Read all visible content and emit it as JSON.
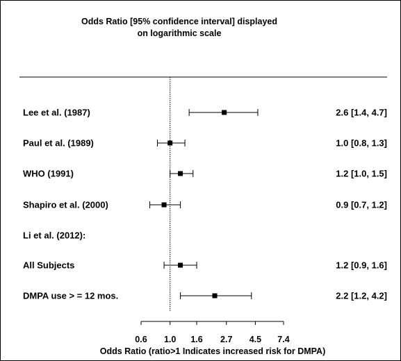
{
  "chart_data": {
    "type": "forest",
    "title_lines": [
      "Odds Ratio [95% confidence interval] displayed",
      "on logarithmic scale"
    ],
    "xlabel": "Odds Ratio (ratio>1 Indicates increased risk for DMPA)",
    "x_scale": "log",
    "xlim": [
      0.6,
      7.4
    ],
    "x_ticks": [
      {
        "value": 0.6,
        "label": "0.6"
      },
      {
        "value": 1.0,
        "label": "1.0"
      },
      {
        "value": 1.6,
        "label": "1.6"
      },
      {
        "value": 2.7,
        "label": "2.7"
      },
      {
        "value": 4.5,
        "label": "4.5"
      },
      {
        "value": 7.4,
        "label": "7.4"
      }
    ],
    "reference_line": 1.0,
    "rows": [
      {
        "label": "Lee et al. (1987)",
        "or": 2.6,
        "lo": 1.4,
        "hi": 4.7,
        "text": "2.6 [1.4, 4.7]"
      },
      {
        "label": "Paul et al. (1989)",
        "or": 1.0,
        "lo": 0.8,
        "hi": 1.3,
        "text": "1.0 [0.8, 1.3]"
      },
      {
        "label": "WHO (1991)",
        "or": 1.2,
        "lo": 1.0,
        "hi": 1.5,
        "text": "1.2 [1.0, 1.5]"
      },
      {
        "label": "Shapiro et al. (2000)",
        "or": 0.9,
        "lo": 0.7,
        "hi": 1.2,
        "text": "0.9 [0.7, 1.2]"
      },
      {
        "label": "Li et al. (2012):",
        "or": null,
        "lo": null,
        "hi": null,
        "text": ""
      },
      {
        "label": "All Subjects",
        "or": 1.2,
        "lo": 0.9,
        "hi": 1.6,
        "text": "1.2 [0.9, 1.6]"
      },
      {
        "label": "DMPA use > = 12 mos.",
        "or": 2.2,
        "lo": 1.2,
        "hi": 4.2,
        "text": "2.2 [1.2, 4.2]"
      }
    ]
  }
}
